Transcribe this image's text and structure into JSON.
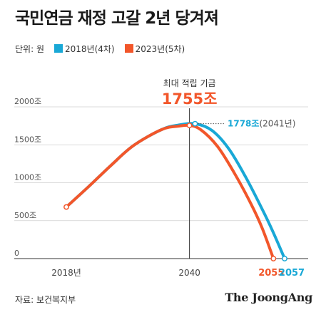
{
  "title": "국민연금 재정 고갈 2년 당겨져",
  "unit_label": "단위: 원",
  "source": "자료: 보건복지부",
  "brand": "The JoongAng",
  "colors": {
    "blue": "#19a8d6",
    "orange": "#f2562a",
    "axis": "#333333",
    "grid": "#cfcfcf"
  },
  "chart_data": {
    "type": "line",
    "y_unit_suffix": "조",
    "ylim": [
      0,
      2000
    ],
    "y_ticks": [
      "2000조",
      "1500조",
      "1000조",
      "500조",
      "0"
    ],
    "x_ticks": [
      "2018년",
      "2040"
    ],
    "series": [
      {
        "name": "2018년(4차)",
        "color": "#19a8d6",
        "points": [
          [
            2018,
            680
          ],
          [
            2022,
            950
          ],
          [
            2026,
            1230
          ],
          [
            2030,
            1490
          ],
          [
            2035,
            1700
          ],
          [
            2038,
            1760
          ],
          [
            2041,
            1778
          ],
          [
            2044,
            1690
          ],
          [
            2047,
            1450
          ],
          [
            2050,
            1080
          ],
          [
            2053,
            650
          ],
          [
            2055,
            340
          ],
          [
            2057,
            0
          ]
        ]
      },
      {
        "name": "2023년(5차)",
        "color": "#f2562a",
        "points": [
          [
            2018,
            680
          ],
          [
            2022,
            950
          ],
          [
            2026,
            1230
          ],
          [
            2030,
            1490
          ],
          [
            2035,
            1700
          ],
          [
            2038,
            1745
          ],
          [
            2040,
            1755
          ],
          [
            2042,
            1700
          ],
          [
            2045,
            1480
          ],
          [
            2048,
            1130
          ],
          [
            2051,
            720
          ],
          [
            2053,
            400
          ],
          [
            2055,
            0
          ]
        ]
      }
    ],
    "annotations": {
      "max_label": "최대 적립 기금",
      "max_value": "1755조",
      "blue_peak_value": "1778조",
      "blue_peak_year": "(2041년)",
      "depletion_orange": "2055",
      "depletion_blue": "2057"
    }
  }
}
